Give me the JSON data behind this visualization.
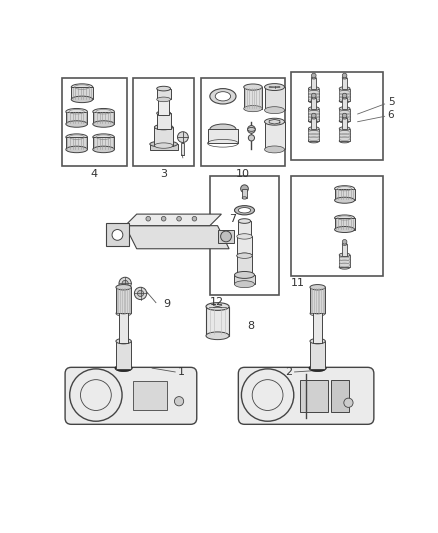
{
  "background_color": "#ffffff",
  "line_color": "#444444",
  "border_color": "#666666",
  "label_color": "#333333",
  "fig_width": 4.38,
  "fig_height": 5.33,
  "dpi": 100
}
